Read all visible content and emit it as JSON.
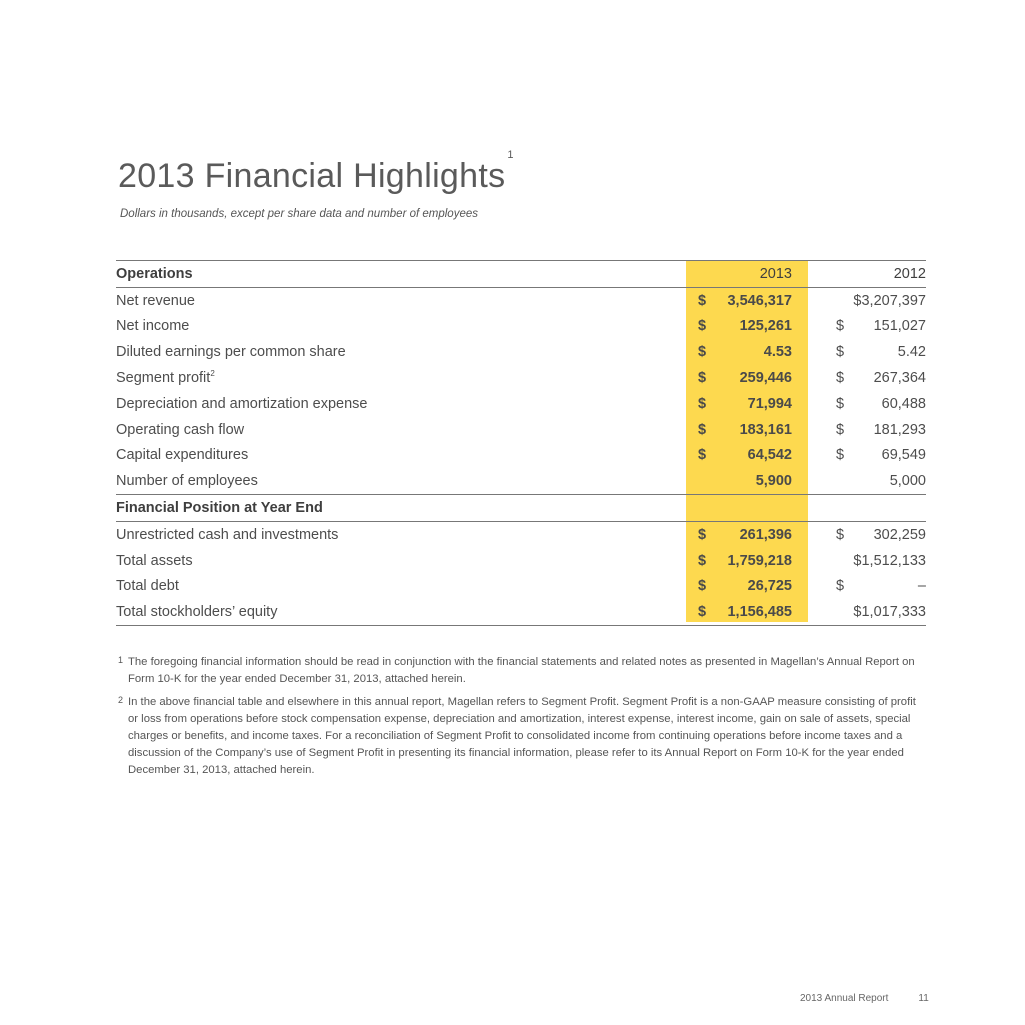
{
  "header": {
    "title": "2013 Financial Highlights",
    "title_sup": "1",
    "subtitle": "Dollars in thousands, except per share data and number of employees"
  },
  "table": {
    "col_2013": "2013",
    "col_2012": "2012",
    "highlight_color": "#fdd94f",
    "sections": [
      {
        "heading": "Operations",
        "rows": [
          {
            "label": "Net revenue",
            "c13": "$",
            "v13": "3,546,317",
            "c12": "",
            "v12": "$3,207,397"
          },
          {
            "label": "Net income",
            "c13": "$",
            "v13": "125,261",
            "c12": "$",
            "v12": "151,027"
          },
          {
            "label": "Diluted earnings per common share",
            "c13": "$",
            "v13": "4.53",
            "c12": "$",
            "v12": "5.42"
          },
          {
            "label": "Segment profit",
            "sup": "2",
            "c13": "$",
            "v13": "259,446",
            "c12": "$",
            "v12": "267,364"
          },
          {
            "label": "Depreciation and amortization expense",
            "c13": "$",
            "v13": "71,994",
            "c12": "$",
            "v12": "60,488"
          },
          {
            "label": "Operating cash flow",
            "c13": "$",
            "v13": "183,161",
            "c12": "$",
            "v12": "181,293"
          },
          {
            "label": "Capital expenditures",
            "c13": "$",
            "v13": "64,542",
            "c12": "$",
            "v12": "69,549"
          },
          {
            "label": "Number of employees",
            "c13": "",
            "v13": "5,900",
            "c12": "",
            "v12": "5,000"
          }
        ]
      },
      {
        "heading": "Financial Position at Year End",
        "rows": [
          {
            "label": "Unrestricted cash and investments",
            "c13": "$",
            "v13": "261,396",
            "c12": "$",
            "v12": "302,259"
          },
          {
            "label": "Total assets",
            "c13": "$",
            "v13": "1,759,218",
            "c12": "",
            "v12": "$1,512,133"
          },
          {
            "label": "Total debt",
            "c13": "$",
            "v13": "26,725",
            "c12": "$",
            "v12": "–"
          },
          {
            "label": "Total stockholders’ equity",
            "c13": "$",
            "v13": "1,156,485",
            "c12": "",
            "v12": "$1,017,333"
          }
        ]
      }
    ]
  },
  "notes": [
    {
      "marker": "1",
      "text": "The foregoing financial information should be read in conjunction with the financial statements and related notes as presented in Magellan’s Annual Report on Form 10-K for the year ended December 31, 2013, attached herein."
    },
    {
      "marker": "2",
      "text": "In the above financial table and elsewhere in this annual report, Magellan refers to Segment Profit. Segment Profit is a non-GAAP measure consisting of profit or loss from operations before stock compensation expense, depreciation and amortization, interest expense, interest income, gain on sale of assets, special charges or benefits, and income taxes. For a reconciliation of Segment Profit to consolidated income from continuing operations before income taxes and a discussion of the Company’s use of Segment Profit in presenting its financial information, please refer to its Annual Report on Form 10-K for the year ended December 31, 2013, attached herein."
    }
  ],
  "footer": {
    "report": "2013 Annual Report",
    "page": "11"
  }
}
